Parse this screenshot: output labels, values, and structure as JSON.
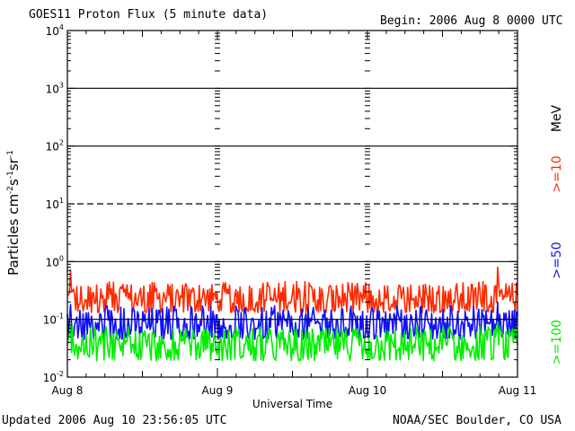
{
  "header": {
    "title": "GOES11 Proton Flux (5 minute data)",
    "begin": "Begin: 2006 Aug 8 0000 UTC"
  },
  "footer": {
    "updated": "Updated 2006 Aug 10 23:56:05 UTC",
    "source": "NOAA/SEC Boulder, CO USA"
  },
  "chart_data": {
    "type": "line",
    "title": "GOES11 Proton Flux (5 minute data)",
    "xlabel": "Universal Time",
    "ylabel": "Particles cm⁻²s⁻¹sr⁻¹",
    "ylabel_parts": {
      "base": "Particles cm",
      "e1": "-2",
      "mid1": "s",
      "e2": "-1",
      "mid2": "sr",
      "e3": "-1"
    },
    "yscale": "log",
    "ylim": [
      0.01,
      10000
    ],
    "y_ticks": [
      {
        "base": "10",
        "exp": "-2",
        "value": 0.01
      },
      {
        "base": "10",
        "exp": "-1",
        "value": 0.1
      },
      {
        "base": "10",
        "exp": "0",
        "value": 1
      },
      {
        "base": "10",
        "exp": "1",
        "value": 10
      },
      {
        "base": "10",
        "exp": "2",
        "value": 100
      },
      {
        "base": "10",
        "exp": "3",
        "value": 1000
      },
      {
        "base": "10",
        "exp": "4",
        "value": 10000
      }
    ],
    "x_ticks": [
      "Aug 8",
      "Aug 9",
      "Aug 10",
      "Aug 11"
    ],
    "xlim_days": [
      0,
      3
    ],
    "threshold_lines": [
      {
        "value": 1000,
        "style": "solid"
      },
      {
        "value": 100,
        "style": "solid"
      },
      {
        "value": 10,
        "style": "dashed"
      },
      {
        "value": 1,
        "style": "solid"
      },
      {
        "value": 0.1,
        "style": "solid"
      }
    ],
    "energy_unit": "MeV",
    "series": [
      {
        "name": ">=10",
        "color": "#ff2a00",
        "baseline": 0.22,
        "min": 0.13,
        "max": 0.45,
        "peak": 0.8
      },
      {
        "name": ">=50",
        "color": "#1010ff",
        "baseline": 0.08,
        "min": 0.045,
        "max": 0.17,
        "peak": 0.2
      },
      {
        "name": ">=100",
        "color": "#00ee00",
        "baseline": 0.035,
        "min": 0.019,
        "max": 0.075,
        "peak": 0.09
      }
    ]
  }
}
